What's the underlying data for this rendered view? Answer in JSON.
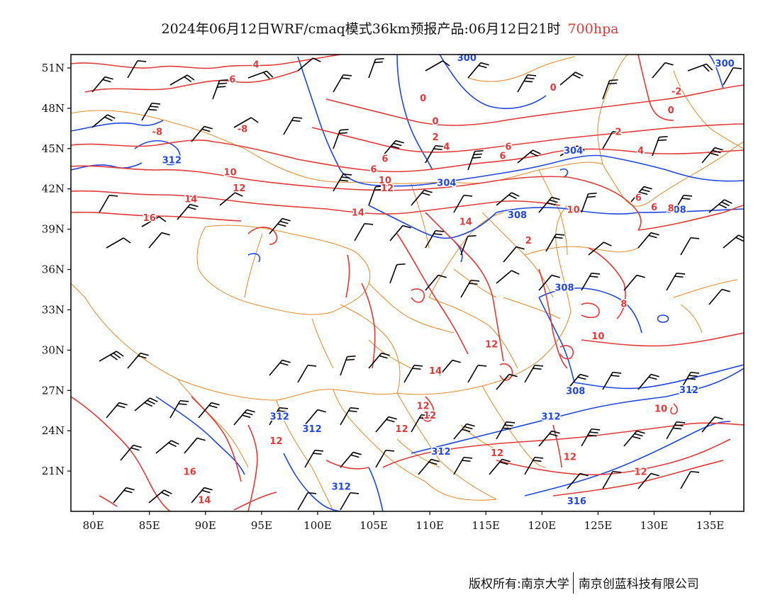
{
  "title": {
    "main": "2024年06月12日WRF/cmaq模式36km预报产品:06月12日21时",
    "level": "700hpa"
  },
  "axes": {
    "lat_labels": [
      "51N",
      "48N",
      "45N",
      "42N",
      "39N",
      "36N",
      "33N",
      "30N",
      "27N",
      "24N",
      "21N"
    ],
    "lat_values": [
      51,
      48,
      45,
      42,
      39,
      36,
      33,
      30,
      27,
      24,
      21
    ],
    "lon_labels": [
      "80E",
      "85E",
      "90E",
      "95E",
      "100E",
      "105E",
      "110E",
      "115E",
      "120E",
      "125E",
      "130E",
      "135E"
    ],
    "lon_values": [
      80,
      85,
      90,
      95,
      100,
      105,
      110,
      115,
      120,
      125,
      130,
      135
    ],
    "lon_range": [
      78,
      138
    ],
    "lat_range": [
      18,
      52
    ]
  },
  "map_layers": {
    "temperature_contours": {
      "color": "#e03a3a",
      "unit": "°C"
    },
    "geopotential_height_contours": {
      "color": "#2147e0",
      "unit": "dagpm"
    },
    "boundaries": {
      "color": "#e08a2a"
    },
    "wind_barbs": {
      "color": "#000000"
    }
  },
  "temperature_labels": [
    {
      "text": "4",
      "lon": 94.5,
      "lat": 51.2
    },
    {
      "text": "6",
      "lon": 92.4,
      "lat": 50.1
    },
    {
      "text": "0",
      "lon": 109.4,
      "lat": 48.7
    },
    {
      "text": "0",
      "lon": 110.5,
      "lat": 47.0
    },
    {
      "text": "2",
      "lon": 110.5,
      "lat": 45.8
    },
    {
      "text": "0",
      "lon": 121.0,
      "lat": 49.5
    },
    {
      "text": "-2",
      "lon": 132.0,
      "lat": 49.2
    },
    {
      "text": "0",
      "lon": 131.5,
      "lat": 47.8
    },
    {
      "text": "2",
      "lon": 126.8,
      "lat": 46.2
    },
    {
      "text": "4",
      "lon": 128.8,
      "lat": 44.8
    },
    {
      "text": "-8",
      "lon": 85.7,
      "lat": 46.2
    },
    {
      "text": "-8",
      "lon": 93.3,
      "lat": 46.4
    },
    {
      "text": "4",
      "lon": 111.5,
      "lat": 45.1
    },
    {
      "text": "6",
      "lon": 117.0,
      "lat": 45.1
    },
    {
      "text": "6",
      "lon": 116.5,
      "lat": 44.4
    },
    {
      "text": "6",
      "lon": 106.0,
      "lat": 44.2
    },
    {
      "text": "6",
      "lon": 105.0,
      "lat": 43.4
    },
    {
      "text": "10",
      "lon": 92.2,
      "lat": 43.2
    },
    {
      "text": "12",
      "lon": 93.0,
      "lat": 42.0
    },
    {
      "text": "10",
      "lon": 106.0,
      "lat": 42.6
    },
    {
      "text": "12",
      "lon": 106.2,
      "lat": 42.0
    },
    {
      "text": "14",
      "lon": 88.7,
      "lat": 41.2
    },
    {
      "text": "14",
      "lon": 103.6,
      "lat": 40.2
    },
    {
      "text": "14",
      "lon": 113.2,
      "lat": 39.5
    },
    {
      "text": "10",
      "lon": 122.8,
      "lat": 40.4
    },
    {
      "text": "6",
      "lon": 128.6,
      "lat": 41.3
    },
    {
      "text": "6",
      "lon": 130.0,
      "lat": 40.6
    },
    {
      "text": "8",
      "lon": 131.5,
      "lat": 40.5
    },
    {
      "text": "16",
      "lon": 85.0,
      "lat": 39.8
    },
    {
      "text": "2",
      "lon": 118.8,
      "lat": 38.1
    },
    {
      "text": "8",
      "lon": 127.3,
      "lat": 33.4
    },
    {
      "text": "10",
      "lon": 125.0,
      "lat": 31.0
    },
    {
      "text": "12",
      "lon": 115.5,
      "lat": 30.4
    },
    {
      "text": "14",
      "lon": 110.5,
      "lat": 28.4
    },
    {
      "text": "12",
      "lon": 109.4,
      "lat": 25.8
    },
    {
      "text": "12",
      "lon": 110.0,
      "lat": 25.1
    },
    {
      "text": "12",
      "lon": 107.5,
      "lat": 24.1
    },
    {
      "text": "12",
      "lon": 96.3,
      "lat": 23.2
    },
    {
      "text": "10",
      "lon": 130.6,
      "lat": 25.6
    },
    {
      "text": "12",
      "lon": 116.0,
      "lat": 22.3
    },
    {
      "text": "12",
      "lon": 122.5,
      "lat": 22.0
    },
    {
      "text": "16",
      "lon": 88.6,
      "lat": 20.9
    },
    {
      "text": "12",
      "lon": 128.8,
      "lat": 20.9
    },
    {
      "text": "14",
      "lon": 89.9,
      "lat": 18.8
    }
  ],
  "height_labels": [
    {
      "text": "300",
      "lon": 113.3,
      "lat": 51.7
    },
    {
      "text": "300",
      "lon": 136.3,
      "lat": 51.3
    },
    {
      "text": "312",
      "lon": 87.0,
      "lat": 44.1
    },
    {
      "text": "304",
      "lon": 122.8,
      "lat": 44.8
    },
    {
      "text": "304",
      "lon": 111.5,
      "lat": 42.4
    },
    {
      "text": "308",
      "lon": 117.8,
      "lat": 40.0
    },
    {
      "text": "308",
      "lon": 132.0,
      "lat": 40.4
    },
    {
      "text": "308",
      "lon": 122.0,
      "lat": 34.6
    },
    {
      "text": "308",
      "lon": 123.0,
      "lat": 26.9
    },
    {
      "text": "312",
      "lon": 133.1,
      "lat": 27.0
    },
    {
      "text": "312",
      "lon": 96.6,
      "lat": 25.0
    },
    {
      "text": "312",
      "lon": 99.5,
      "lat": 24.1
    },
    {
      "text": "312",
      "lon": 120.8,
      "lat": 25.0
    },
    {
      "text": "312",
      "lon": 111.0,
      "lat": 22.4
    },
    {
      "text": "312",
      "lon": 102.1,
      "lat": 19.8
    },
    {
      "text": "316",
      "lon": 123.1,
      "lat": 18.7
    }
  ],
  "footer": {
    "copyright": "版权所有:南京大学",
    "company": "南京创蓝科技有限公司"
  }
}
